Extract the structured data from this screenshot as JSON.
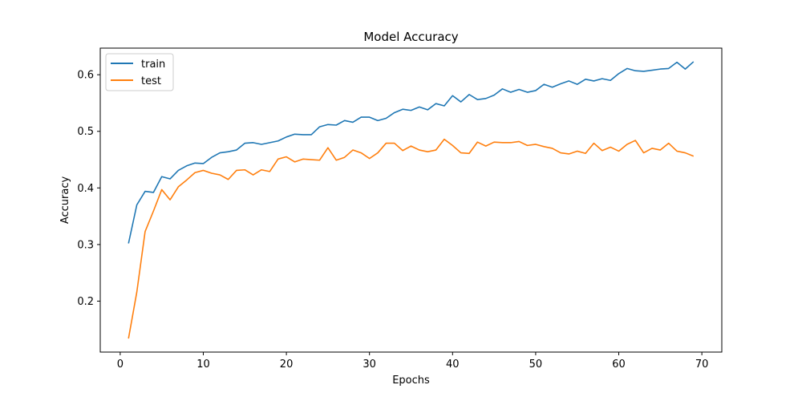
{
  "chart_data": {
    "type": "line",
    "title": "Model Accuracy",
    "xlabel": "Epochs",
    "ylabel": "Accuracy",
    "xlim": [
      -2.4,
      72.4
    ],
    "ylim": [
      0.11,
      0.647
    ],
    "xticks": [
      0,
      10,
      20,
      30,
      40,
      50,
      60,
      70
    ],
    "yticks": [
      0.2,
      0.3,
      0.4,
      0.5,
      0.6
    ],
    "ytick_labels": [
      "0.2",
      "0.3",
      "0.4",
      "0.5",
      "0.6"
    ],
    "grid": false,
    "legend_position": "top-left",
    "x": [
      1,
      2,
      3,
      4,
      5,
      6,
      7,
      8,
      9,
      10,
      11,
      12,
      13,
      14,
      15,
      16,
      17,
      18,
      19,
      20,
      21,
      22,
      23,
      24,
      25,
      26,
      27,
      28,
      29,
      30,
      31,
      32,
      33,
      34,
      35,
      36,
      37,
      38,
      39,
      40,
      41,
      42,
      43,
      44,
      45,
      46,
      47,
      48,
      49,
      50,
      51,
      52,
      53,
      54,
      55,
      56,
      57,
      58,
      59,
      60,
      61,
      62,
      63,
      64,
      65,
      66,
      67,
      68,
      69
    ],
    "series": [
      {
        "name": "train",
        "color": "#1f77b4",
        "values": [
          0.302,
          0.37,
          0.394,
          0.392,
          0.42,
          0.416,
          0.431,
          0.439,
          0.444,
          0.443,
          0.454,
          0.462,
          0.464,
          0.467,
          0.479,
          0.48,
          0.477,
          0.48,
          0.483,
          0.49,
          0.495,
          0.494,
          0.494,
          0.508,
          0.512,
          0.511,
          0.519,
          0.516,
          0.525,
          0.525,
          0.519,
          0.523,
          0.533,
          0.539,
          0.537,
          0.543,
          0.538,
          0.549,
          0.545,
          0.563,
          0.552,
          0.565,
          0.556,
          0.558,
          0.564,
          0.575,
          0.569,
          0.574,
          0.569,
          0.572,
          0.583,
          0.578,
          0.584,
          0.589,
          0.583,
          0.592,
          0.589,
          0.593,
          0.59,
          0.602,
          0.611,
          0.607,
          0.606,
          0.608,
          0.61,
          0.611,
          0.622,
          0.61,
          0.623
        ]
      },
      {
        "name": "test",
        "color": "#ff7f0e",
        "values": [
          0.134,
          0.216,
          0.323,
          0.359,
          0.397,
          0.379,
          0.402,
          0.414,
          0.427,
          0.431,
          0.426,
          0.423,
          0.415,
          0.431,
          0.432,
          0.423,
          0.432,
          0.429,
          0.451,
          0.455,
          0.446,
          0.451,
          0.45,
          0.449,
          0.471,
          0.449,
          0.454,
          0.467,
          0.462,
          0.452,
          0.462,
          0.479,
          0.479,
          0.466,
          0.474,
          0.467,
          0.464,
          0.467,
          0.486,
          0.475,
          0.462,
          0.461,
          0.481,
          0.474,
          0.481,
          0.48,
          0.48,
          0.482,
          0.475,
          0.477,
          0.473,
          0.47,
          0.462,
          0.46,
          0.465,
          0.461,
          0.479,
          0.466,
          0.472,
          0.465,
          0.477,
          0.484,
          0.462,
          0.47,
          0.467,
          0.479,
          0.465,
          0.462,
          0.456
        ]
      }
    ]
  }
}
